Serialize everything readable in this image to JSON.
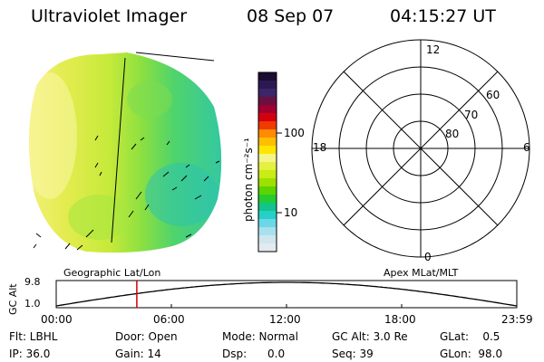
{
  "header": {
    "title": "Ultraviolet Imager",
    "date": "08 Sep 07",
    "time": "04:15:27 UT"
  },
  "colorbar": {
    "unit_label": "photon cm⁻²s⁻¹",
    "ticks": [
      "100",
      "10"
    ],
    "colors": [
      "#1a0c33",
      "#2b1a52",
      "#3e2468",
      "#6a1040",
      "#a00030",
      "#d40010",
      "#f03a00",
      "#ff8c00",
      "#ffbf00",
      "#ffe600",
      "#f3f58a",
      "#e6f040",
      "#c8ec14",
      "#9ee000",
      "#5cd400",
      "#24cc30",
      "#12c48a",
      "#24d0c8",
      "#6ad8e6",
      "#a8e0ee",
      "#cfe6ee",
      "#e4eaee"
    ]
  },
  "polar": {
    "clock_labels": {
      "top": "12",
      "right": "6",
      "bottom": "0",
      "left": "18"
    },
    "ring_labels": [
      "60",
      "70",
      "80"
    ]
  },
  "timeline": {
    "left_label": "Geographic Lat/Lon",
    "right_label": "Apex MLat/MLT",
    "axis_title": "GC Alt",
    "y_ticks": [
      "9.8",
      "1.0"
    ],
    "x_ticks": [
      "00:00",
      "06:00",
      "12:00",
      "18:00",
      "23:59"
    ],
    "current_time_fraction": 0.175
  },
  "status": {
    "row1": [
      {
        "name": "filter",
        "text": "Flt: LBHL"
      },
      {
        "name": "door",
        "text": "Door: Open"
      },
      {
        "name": "mode",
        "text": "Mode: Normal"
      },
      {
        "name": "gc-alt",
        "text": "GC Alt: 3.0 Re"
      },
      {
        "name": "glat",
        "text": "GLat:    0.5"
      }
    ],
    "row2": [
      {
        "name": "ip",
        "text": "IP: 36.0"
      },
      {
        "name": "gain",
        "text": "Gain: 14"
      },
      {
        "name": "dsp",
        "text": "Dsp:      0.0"
      },
      {
        "name": "seq",
        "text": "Seq: 39"
      },
      {
        "name": "glon",
        "text": "GLon:  98.0"
      }
    ]
  }
}
